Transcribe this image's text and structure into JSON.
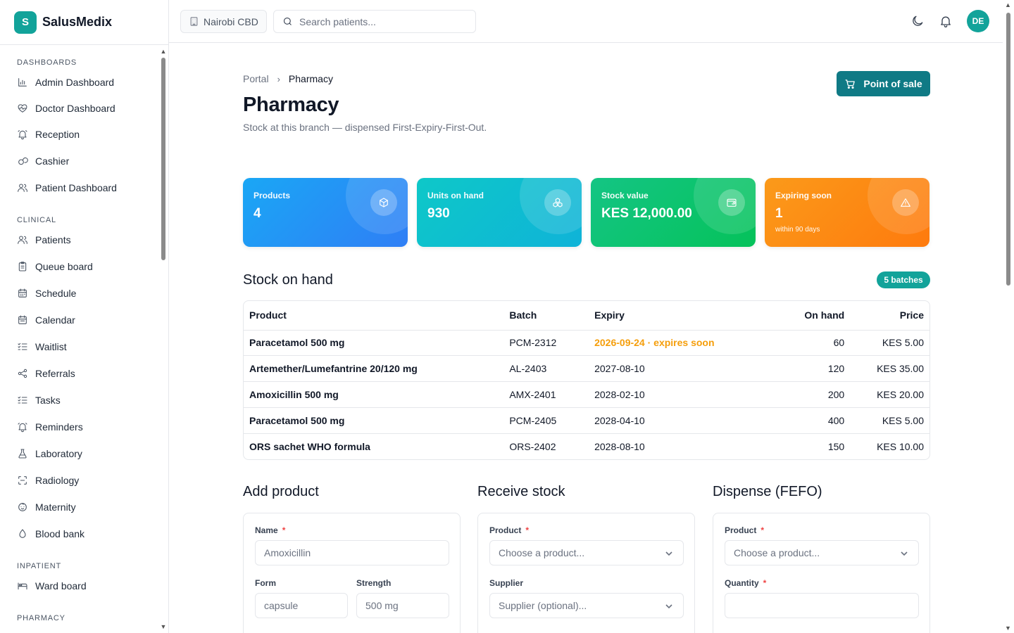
{
  "app": {
    "logo_letter": "S",
    "name": "SalusMedix"
  },
  "sidebar": {
    "sections": [
      {
        "title": "DASHBOARDS",
        "items": [
          {
            "label": "Admin Dashboard",
            "icon": "bar-chart-icon"
          },
          {
            "label": "Doctor Dashboard",
            "icon": "heart-pulse-icon"
          },
          {
            "label": "Reception",
            "icon": "bell-ring-icon"
          },
          {
            "label": "Cashier",
            "icon": "coins-icon"
          },
          {
            "label": "Patient Dashboard",
            "icon": "users-icon"
          }
        ]
      },
      {
        "title": "CLINICAL",
        "items": [
          {
            "label": "Patients",
            "icon": "users-icon"
          },
          {
            "label": "Queue board",
            "icon": "clipboard-icon"
          },
          {
            "label": "Schedule",
            "icon": "calendar-icon"
          },
          {
            "label": "Calendar",
            "icon": "calendar-days-icon"
          },
          {
            "label": "Waitlist",
            "icon": "list-checks-icon"
          },
          {
            "label": "Referrals",
            "icon": "share-icon"
          },
          {
            "label": "Tasks",
            "icon": "list-checks-icon"
          },
          {
            "label": "Reminders",
            "icon": "bell-ring-icon"
          },
          {
            "label": "Laboratory",
            "icon": "flask-icon"
          },
          {
            "label": "Radiology",
            "icon": "scan-icon"
          },
          {
            "label": "Maternity",
            "icon": "baby-icon"
          },
          {
            "label": "Blood bank",
            "icon": "droplet-icon"
          }
        ]
      },
      {
        "title": "INPATIENT",
        "items": [
          {
            "label": "Ward board",
            "icon": "bed-icon"
          }
        ]
      },
      {
        "title": "PHARMACY",
        "items": []
      }
    ]
  },
  "topbar": {
    "branch": "Nairobi CBD",
    "search_placeholder": "Search patients...",
    "avatar_initials": "DE"
  },
  "page": {
    "breadcrumb": {
      "parent": "Portal",
      "current": "Pharmacy"
    },
    "title": "Pharmacy",
    "subtitle": "Stock at this branch — dispensed First-Expiry-First-Out.",
    "pos_button": "Point of sale"
  },
  "stats": [
    {
      "label": "Products",
      "value": "4",
      "hint": "",
      "icon": "box-icon",
      "gradient": [
        "#1aa7f5",
        "#2f7ef5"
      ]
    },
    {
      "label": "Units on hand",
      "value": "930",
      "hint": "",
      "icon": "boxes-icon",
      "gradient": [
        "#0ec8c8",
        "#0fb3d8"
      ]
    },
    {
      "label": "Stock value",
      "value": "KES 12,000.00",
      "hint": "",
      "icon": "wallet-icon",
      "gradient": [
        "#14c584",
        "#05c25a"
      ]
    },
    {
      "label": "Expiring soon",
      "value": "1",
      "hint": "within 90 days",
      "icon": "alert-triangle-icon",
      "gradient": [
        "#fb9a1a",
        "#fe7a0d"
      ]
    }
  ],
  "stock": {
    "title": "Stock on hand",
    "badge": "5 batches",
    "columns": [
      "Product",
      "Batch",
      "Expiry",
      "On hand",
      "Price"
    ],
    "rows": [
      {
        "product": "Paracetamol 500 mg",
        "batch": "PCM-2312",
        "expiry": "2026-09-24 · expires soon",
        "on_hand": "60",
        "price": "KES 5.00",
        "expiring": true
      },
      {
        "product": "Artemether/Lumefantrine 20/120 mg",
        "batch": "AL-2403",
        "expiry": "2027-08-10",
        "on_hand": "120",
        "price": "KES 35.00",
        "expiring": false
      },
      {
        "product": "Amoxicillin 500 mg",
        "batch": "AMX-2401",
        "expiry": "2028-02-10",
        "on_hand": "200",
        "price": "KES 20.00",
        "expiring": false
      },
      {
        "product": "Paracetamol 500 mg",
        "batch": "PCM-2405",
        "expiry": "2028-04-10",
        "on_hand": "400",
        "price": "KES 5.00",
        "expiring": false
      },
      {
        "product": "ORS sachet WHO formula",
        "batch": "ORS-2402",
        "expiry": "2028-08-10",
        "on_hand": "150",
        "price": "KES 10.00",
        "expiring": false
      }
    ]
  },
  "forms": {
    "add_product": {
      "title": "Add product",
      "name_label": "Name",
      "name_placeholder": "Amoxicillin",
      "form_label": "Form",
      "form_placeholder": "capsule",
      "strength_label": "Strength",
      "strength_placeholder": "500 mg"
    },
    "receive_stock": {
      "title": "Receive stock",
      "product_label": "Product",
      "product_placeholder": "Choose a product...",
      "supplier_label": "Supplier",
      "supplier_placeholder": "Supplier (optional)..."
    },
    "dispense": {
      "title": "Dispense (FEFO)",
      "product_label": "Product",
      "product_placeholder": "Choose a product...",
      "quantity_label": "Quantity",
      "quantity_value": ""
    }
  },
  "colors": {
    "accent": "#12a39a",
    "pos_button": "#0f7a85",
    "warning": "#f59e0b",
    "required": "#ef4444"
  }
}
